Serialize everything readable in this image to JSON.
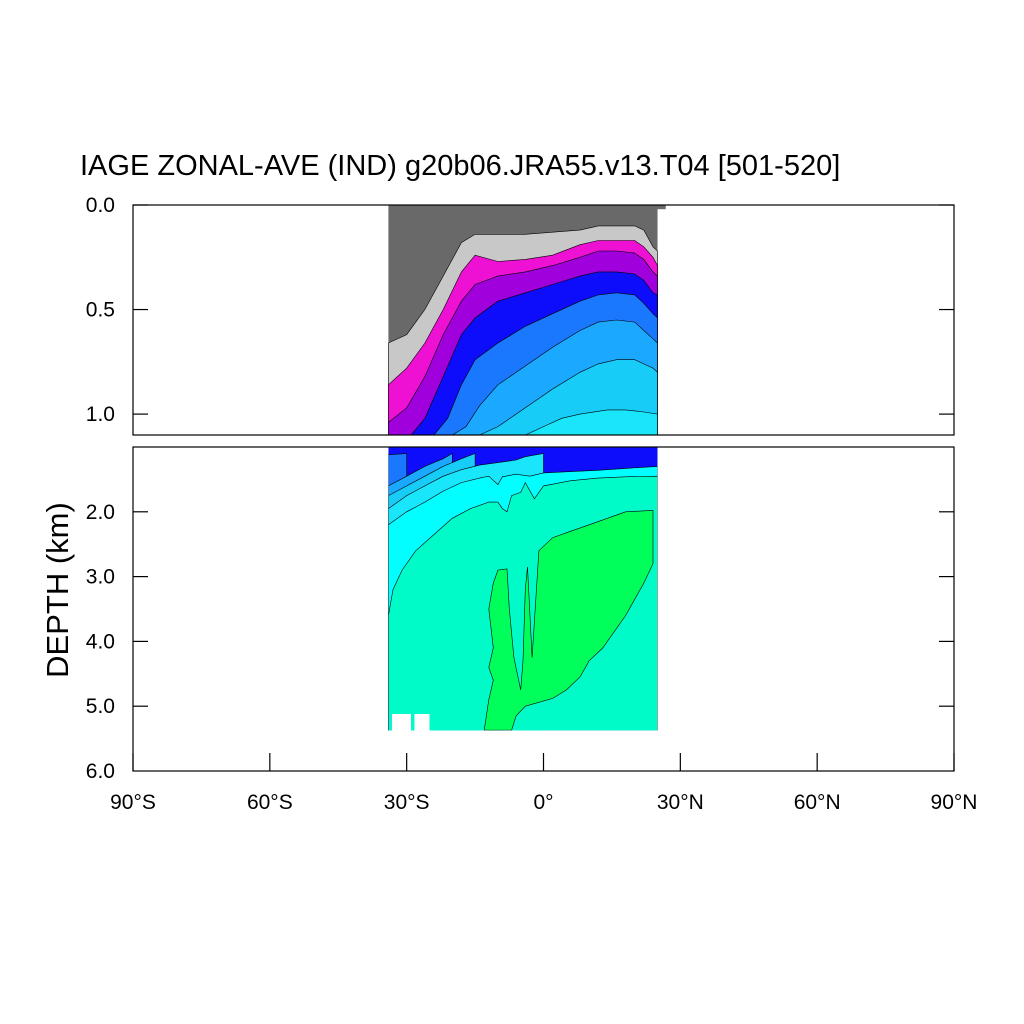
{
  "title": "IAGE ZONAL-AVE (IND) g20b06.JRA55.v13.T04 [501-520]",
  "chart_data": {
    "type": "contour",
    "title": "IAGE ZONAL-AVE (IND) g20b06.JRA55.v13.T04 [501-520]",
    "ylabel": "DEPTH (km)",
    "xlabel": "",
    "xlim": [
      -90,
      90
    ],
    "x_ticks": [
      -90,
      -60,
      -30,
      0,
      30,
      60,
      90
    ],
    "x_tick_labels": [
      "90°S",
      "60°S",
      "30°S",
      "0°",
      "30°N",
      "60°N",
      "90°N"
    ],
    "y_upper_panel": {
      "range_km": [
        0.0,
        1.1
      ],
      "ticks": [
        0.0,
        0.5,
        1.0
      ],
      "tick_labels": [
        "0.0",
        "0.5",
        "1.0"
      ]
    },
    "y_lower_panel": {
      "range_km": [
        1.0,
        6.0
      ],
      "ticks": [
        2.0,
        3.0,
        4.0,
        5.0,
        6.0
      ],
      "tick_labels": [
        "2.0",
        "3.0",
        "4.0",
        "5.0",
        "6.0"
      ]
    },
    "data_extent": {
      "lat_min": -34,
      "lat_max": 25
    },
    "color_levels": [
      {
        "level": 1,
        "color": "#696969"
      },
      {
        "level": 2,
        "color": "#c8c8c8"
      },
      {
        "level": 3,
        "color": "#ee11d4"
      },
      {
        "level": 4,
        "color": "#9f00dc"
      },
      {
        "level": 5,
        "color": "#0d0dfb"
      },
      {
        "level": 6,
        "color": "#1a78ff"
      },
      {
        "level": 7,
        "color": "#1ba8ff"
      },
      {
        "level": 8,
        "color": "#17cdf7"
      },
      {
        "level": 9,
        "color": "#19e5fb"
      },
      {
        "level": 10,
        "color": "#03feff"
      },
      {
        "level": 11,
        "color": "#00fbc8"
      },
      {
        "level": 12,
        "color": "#00ff5a"
      }
    ],
    "upper_boundaries": [
      {
        "after_level": 1,
        "pts": [
          [
            -34,
            0.66
          ],
          [
            -30,
            0.62
          ],
          [
            -26,
            0.5
          ],
          [
            -22,
            0.34
          ],
          [
            -18,
            0.18
          ],
          [
            -15,
            0.14
          ],
          [
            -10,
            0.14
          ],
          [
            -4,
            0.14
          ],
          [
            2,
            0.13
          ],
          [
            8,
            0.12
          ],
          [
            12,
            0.1
          ],
          [
            16,
            0.1
          ],
          [
            20,
            0.1
          ],
          [
            22,
            0.12
          ],
          [
            24,
            0.2
          ],
          [
            25,
            0.22
          ]
        ]
      },
      {
        "after_level": 2,
        "pts": [
          [
            -34,
            0.86
          ],
          [
            -30,
            0.78
          ],
          [
            -26,
            0.66
          ],
          [
            -22,
            0.5
          ],
          [
            -18,
            0.32
          ],
          [
            -15,
            0.24
          ],
          [
            -10,
            0.27
          ],
          [
            -4,
            0.26
          ],
          [
            2,
            0.24
          ],
          [
            8,
            0.19
          ],
          [
            12,
            0.17
          ],
          [
            16,
            0.17
          ],
          [
            20,
            0.17
          ],
          [
            22,
            0.2
          ],
          [
            24,
            0.25
          ],
          [
            25,
            0.29
          ]
        ]
      },
      {
        "after_level": 3,
        "pts": [
          [
            -34,
            1.04
          ],
          [
            -30,
            0.97
          ],
          [
            -26,
            0.82
          ],
          [
            -22,
            0.62
          ],
          [
            -18,
            0.46
          ],
          [
            -15,
            0.38
          ],
          [
            -10,
            0.34
          ],
          [
            -4,
            0.32
          ],
          [
            2,
            0.29
          ],
          [
            8,
            0.25
          ],
          [
            12,
            0.22
          ],
          [
            16,
            0.22
          ],
          [
            20,
            0.23
          ],
          [
            22,
            0.26
          ],
          [
            24,
            0.32
          ],
          [
            25,
            0.34
          ]
        ]
      },
      {
        "after_level": 4,
        "pts": [
          [
            -34,
            1.1
          ],
          [
            -29,
            1.1
          ],
          [
            -26,
            1.02
          ],
          [
            -22,
            0.82
          ],
          [
            -18,
            0.62
          ],
          [
            -15,
            0.54
          ],
          [
            -10,
            0.46
          ],
          [
            -4,
            0.42
          ],
          [
            2,
            0.38
          ],
          [
            8,
            0.34
          ],
          [
            12,
            0.32
          ],
          [
            16,
            0.32
          ],
          [
            20,
            0.33
          ],
          [
            22,
            0.36
          ],
          [
            24,
            0.42
          ],
          [
            25,
            0.43
          ]
        ]
      },
      {
        "after_level": 5,
        "pts": [
          [
            -34,
            1.1
          ],
          [
            -24,
            1.1
          ],
          [
            -21,
            1.02
          ],
          [
            -18,
            0.86
          ],
          [
            -15,
            0.74
          ],
          [
            -10,
            0.66
          ],
          [
            -4,
            0.58
          ],
          [
            2,
            0.52
          ],
          [
            8,
            0.46
          ],
          [
            12,
            0.43
          ],
          [
            16,
            0.42
          ],
          [
            20,
            0.43
          ],
          [
            22,
            0.47
          ],
          [
            24,
            0.52
          ],
          [
            25,
            0.54
          ]
        ]
      },
      {
        "after_level": 6,
        "pts": [
          [
            -34,
            1.1
          ],
          [
            -20,
            1.1
          ],
          [
            -17,
            1.06
          ],
          [
            -14,
            0.96
          ],
          [
            -10,
            0.86
          ],
          [
            -4,
            0.77
          ],
          [
            2,
            0.68
          ],
          [
            8,
            0.6
          ],
          [
            12,
            0.56
          ],
          [
            16,
            0.55
          ],
          [
            20,
            0.56
          ],
          [
            22,
            0.6
          ],
          [
            24,
            0.64
          ],
          [
            25,
            0.66
          ]
        ]
      },
      {
        "after_level": 7,
        "pts": [
          [
            -34,
            1.1
          ],
          [
            -14,
            1.1
          ],
          [
            -10,
            1.06
          ],
          [
            -6,
            1.0
          ],
          [
            -2,
            0.94
          ],
          [
            2,
            0.88
          ],
          [
            8,
            0.8
          ],
          [
            12,
            0.76
          ],
          [
            16,
            0.74
          ],
          [
            20,
            0.74
          ],
          [
            24,
            0.78
          ],
          [
            25,
            0.8
          ]
        ]
      },
      {
        "after_level": 8,
        "pts": [
          [
            -34,
            1.1
          ],
          [
            -4,
            1.1
          ],
          [
            0,
            1.06
          ],
          [
            4,
            1.02
          ],
          [
            8,
            1.0
          ],
          [
            14,
            0.98
          ],
          [
            18,
            0.98
          ],
          [
            22,
            0.99
          ],
          [
            25,
            1.0
          ]
        ]
      }
    ],
    "lower_boundaries": [
      {
        "after_level": 5,
        "pts": [
          [
            -34,
            1.1
          ],
          [
            -34,
            1.12
          ],
          [
            -30,
            1.1
          ]
        ]
      },
      {
        "after_level": 6,
        "pts": [
          [
            -34,
            1.6
          ],
          [
            -30,
            1.45
          ],
          [
            -26,
            1.3
          ],
          [
            -22,
            1.18
          ],
          [
            -20,
            1.1
          ]
        ]
      },
      {
        "after_level": 7,
        "pts": [
          [
            -34,
            1.75
          ],
          [
            -30,
            1.6
          ],
          [
            -26,
            1.45
          ],
          [
            -22,
            1.3
          ],
          [
            -18,
            1.18
          ],
          [
            -15,
            1.1
          ]
        ]
      },
      {
        "after_level": 8,
        "pts": [
          [
            -34,
            1.95
          ],
          [
            -30,
            1.75
          ],
          [
            -26,
            1.6
          ],
          [
            -22,
            1.45
          ],
          [
            -18,
            1.35
          ],
          [
            -14,
            1.28
          ],
          [
            -10,
            1.24
          ],
          [
            -6,
            1.2
          ],
          [
            -4,
            1.15
          ],
          [
            0,
            1.1
          ]
        ]
      },
      {
        "after_level": 9,
        "pts": [
          [
            -34,
            2.2
          ],
          [
            -30,
            2.0
          ],
          [
            -26,
            1.85
          ],
          [
            -22,
            1.68
          ],
          [
            -18,
            1.55
          ],
          [
            -14,
            1.48
          ],
          [
            -12,
            1.45
          ],
          [
            -10,
            1.58
          ],
          [
            -9,
            1.46
          ],
          [
            -6,
            1.42
          ],
          [
            -3,
            1.45
          ],
          [
            0,
            1.4
          ],
          [
            6,
            1.38
          ],
          [
            12,
            1.36
          ],
          [
            18,
            1.33
          ],
          [
            25,
            1.3
          ]
        ]
      },
      {
        "after_level": 10,
        "pts": [
          [
            -34,
            3.6
          ],
          [
            -33,
            3.2
          ],
          [
            -31,
            2.9
          ],
          [
            -28,
            2.6
          ],
          [
            -24,
            2.35
          ],
          [
            -20,
            2.1
          ],
          [
            -16,
            1.95
          ],
          [
            -12,
            1.85
          ],
          [
            -10,
            1.85
          ],
          [
            -9,
            1.95
          ],
          [
            -8,
            2.0
          ],
          [
            -7,
            1.75
          ],
          [
            -5,
            1.7
          ],
          [
            -4,
            1.55
          ],
          [
            -2,
            1.8
          ],
          [
            0,
            1.6
          ],
          [
            6,
            1.52
          ],
          [
            12,
            1.48
          ],
          [
            18,
            1.46
          ],
          [
            25,
            1.45
          ]
        ]
      }
    ],
    "green_region": [
      [
        -13,
        5.37
      ],
      [
        -12,
        4.9
      ],
      [
        -11,
        4.6
      ],
      [
        -12,
        4.4
      ],
      [
        -11,
        4.1
      ],
      [
        -12,
        3.5
      ],
      [
        -11,
        3.1
      ],
      [
        -10,
        2.9
      ],
      [
        -8,
        2.88
      ],
      [
        -7.5,
        3.5
      ],
      [
        -6.5,
        4.25
      ],
      [
        -5,
        4.75
      ],
      [
        -4.5,
        4.3
      ],
      [
        -4,
        3.2
      ],
      [
        -3.5,
        2.85
      ],
      [
        -2.5,
        4.25
      ],
      [
        -1,
        2.6
      ],
      [
        2,
        2.4
      ],
      [
        6,
        2.3
      ],
      [
        10,
        2.2
      ],
      [
        14,
        2.1
      ],
      [
        18,
        2.0
      ],
      [
        24,
        1.98
      ],
      [
        24,
        2.8
      ],
      [
        22,
        3.1
      ],
      [
        20,
        3.35
      ],
      [
        18,
        3.6
      ],
      [
        16,
        3.8
      ],
      [
        13,
        4.1
      ],
      [
        10,
        4.3
      ],
      [
        8,
        4.55
      ],
      [
        5,
        4.75
      ],
      [
        2,
        4.88
      ],
      [
        -4,
        5.0
      ],
      [
        -6,
        5.15
      ],
      [
        -7,
        5.37
      ]
    ],
    "bottom_steps": [
      [
        -34,
        5.37
      ],
      [
        -33.3,
        5.37
      ],
      [
        -33.3,
        5.12
      ],
      [
        -29,
        5.12
      ],
      [
        -29,
        5.37
      ],
      [
        -28.3,
        5.37
      ],
      [
        -28.3,
        5.12
      ],
      [
        -25,
        5.12
      ],
      [
        -25,
        5.37
      ],
      [
        25,
        5.37
      ],
      [
        25,
        1.0
      ],
      [
        -34,
        1.0
      ]
    ]
  }
}
